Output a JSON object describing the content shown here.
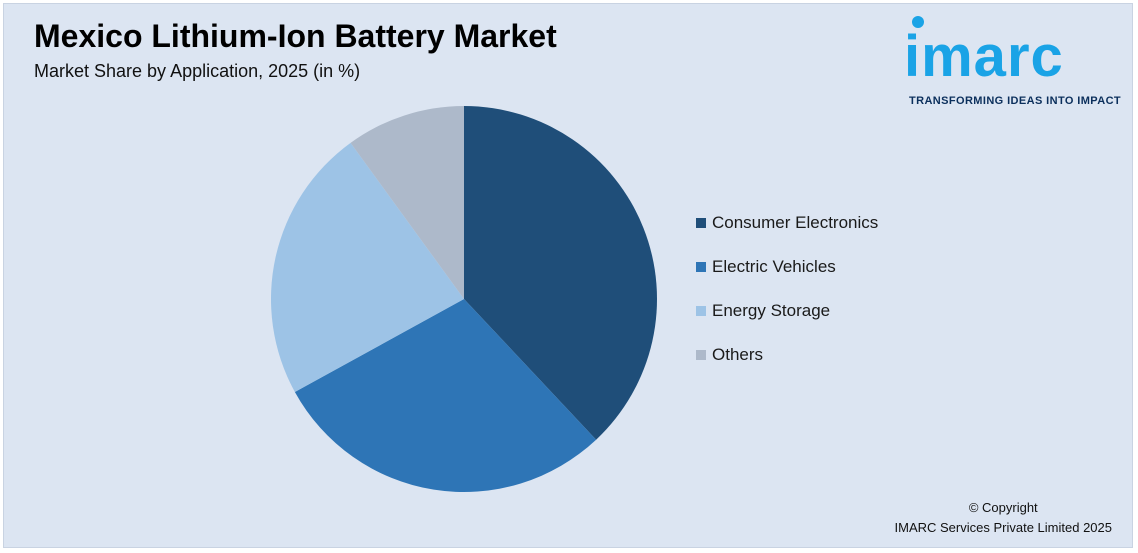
{
  "title": "Mexico Lithium-Ion Battery Market",
  "subtitle": "Market Share by Application, 2025 (in %)",
  "logo": {
    "word": "imarc",
    "tagline": "TRANSFORMING IDEAS INTO IMPACT"
  },
  "colors": {
    "background": "#dce5f2",
    "consumer": "#1f4e79",
    "ev": "#2e75b6",
    "storage": "#9dc3e6",
    "others": "#adb9ca",
    "brand": "#1aa3e6"
  },
  "chart_data": {
    "type": "pie",
    "categories": [
      "Consumer Electronics",
      "Electric Vehicles",
      "Energy Storage",
      "Others"
    ],
    "values": [
      38,
      29,
      23,
      10
    ],
    "colors": [
      "#1f4e79",
      "#2e75b6",
      "#9dc3e6",
      "#adb9ca"
    ],
    "legend_position": "right"
  },
  "legend": [
    {
      "label": "Consumer Electronics",
      "color": "#1f4e79"
    },
    {
      "label": "Electric Vehicles",
      "color": "#2e75b6"
    },
    {
      "label": "Energy Storage",
      "color": "#9dc3e6"
    },
    {
      "label": "Others",
      "color": "#adb9ca"
    }
  ],
  "copyright": {
    "line1": "© Copyright",
    "line2": "IMARC Services Private Limited 2025"
  }
}
